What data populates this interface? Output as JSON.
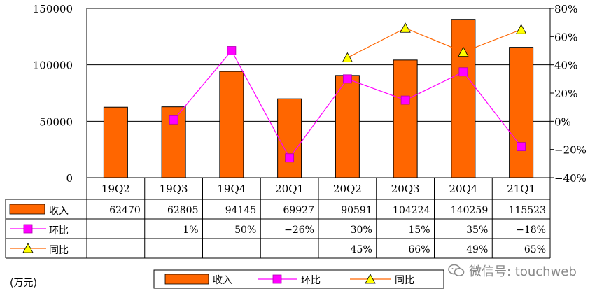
{
  "chart_data": {
    "type": "bar",
    "categories": [
      "19Q2",
      "19Q3",
      "19Q4",
      "20Q1",
      "20Q2",
      "20Q3",
      "20Q4",
      "21Q1"
    ],
    "series": [
      {
        "name": "收入",
        "type": "bar",
        "axis": "left",
        "color": "#ff6600",
        "values": [
          62470,
          62805,
          94145,
          69927,
          90591,
          104224,
          140259,
          115523
        ],
        "labels": [
          "62470",
          "62805",
          "94145",
          "69927",
          "90591",
          "104224",
          "140259",
          "115523"
        ]
      },
      {
        "name": "环比",
        "type": "line",
        "axis": "right",
        "color": "#ff00ff",
        "marker": "square",
        "values": [
          null,
          1,
          50,
          -26,
          30,
          15,
          35,
          -18
        ],
        "labels": [
          "",
          "1%",
          "50%",
          "−26%",
          "30%",
          "15%",
          "35%",
          "−18%"
        ]
      },
      {
        "name": "同比",
        "type": "line",
        "axis": "right",
        "color": "#ff6600",
        "marker": "triangle",
        "values": [
          null,
          null,
          null,
          null,
          45,
          66,
          49,
          65
        ],
        "labels": [
          "",
          "",
          "",
          "",
          "45%",
          "66%",
          "49%",
          "65%"
        ]
      }
    ],
    "y_left": {
      "range": [
        0,
        150000
      ],
      "ticks": [
        "0",
        "50000",
        "100000",
        "150000"
      ]
    },
    "y_right": {
      "range": [
        -40,
        80
      ],
      "ticks": [
        "−40%",
        "−20%",
        "0%",
        "20%",
        "40%",
        "60%",
        "80%"
      ]
    },
    "grid": true,
    "legend_position": "bottom",
    "table_below": true,
    "unit_note": "(万元)"
  },
  "watermark": {
    "text": "微信号: touchweb"
  }
}
